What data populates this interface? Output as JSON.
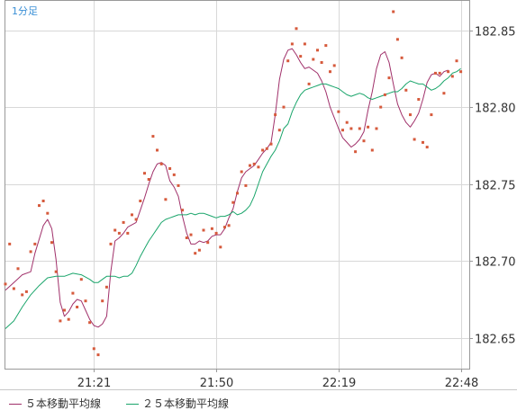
{
  "timeframe_label": "1分足",
  "legend": {
    "ma5_label": "５本移動平均線",
    "ma25_label": "２５本移動平均線"
  },
  "colors": {
    "price_point": "#d65a3c",
    "ma5": "#a0306a",
    "ma25": "#1aa56b",
    "grid": "#d8d8d8",
    "frame": "#999999",
    "timeframe_label": "#3a8fd6"
  },
  "chart_data": {
    "type": "scatter",
    "x_tick_labels": [
      "21:21",
      "21:50",
      "22:19",
      "22:48"
    ],
    "x_ticks": [
      21,
      50,
      79,
      108
    ],
    "xlim": [
      0,
      110
    ],
    "y_tick_labels": [
      "182.85",
      "182.80",
      "182.75",
      "182.70",
      "182.65"
    ],
    "y_ticks": [
      182.85,
      182.8,
      182.75,
      182.7,
      182.65
    ],
    "ylim": [
      182.63,
      182.869
    ],
    "grid": true,
    "series": [
      {
        "name": "",
        "kind": "points",
        "points": [
          [
            0,
            182.685
          ],
          [
            1,
            182.711
          ],
          [
            2,
            182.682
          ],
          [
            3,
            182.695
          ],
          [
            4,
            182.678
          ],
          [
            5,
            182.68
          ],
          [
            6,
            182.706
          ],
          [
            7,
            182.711
          ],
          [
            8,
            182.736
          ],
          [
            9,
            182.739
          ],
          [
            10,
            182.731
          ],
          [
            11,
            182.712
          ],
          [
            12,
            182.693
          ],
          [
            13,
            182.661
          ],
          [
            14,
            182.668
          ],
          [
            15,
            182.662
          ],
          [
            16,
            182.679
          ],
          [
            17,
            182.67
          ],
          [
            18,
            182.688
          ],
          [
            19,
            182.674
          ],
          [
            20,
            182.66
          ],
          [
            21,
            182.643
          ],
          [
            22,
            182.639
          ],
          [
            23,
            182.674
          ],
          [
            24,
            182.683
          ],
          [
            25,
            182.711
          ],
          [
            26,
            182.72
          ],
          [
            27,
            182.718
          ],
          [
            28,
            182.725
          ],
          [
            29,
            182.718
          ],
          [
            30,
            182.73
          ],
          [
            31,
            182.727
          ],
          [
            32,
            182.739
          ],
          [
            33,
            182.757
          ],
          [
            34,
            182.753
          ],
          [
            35,
            182.781
          ],
          [
            36,
            182.772
          ],
          [
            37,
            182.763
          ],
          [
            38,
            182.74
          ],
          [
            39,
            182.76
          ],
          [
            40,
            182.756
          ],
          [
            41,
            182.749
          ],
          [
            42,
            182.733
          ],
          [
            43,
            182.715
          ],
          [
            44,
            182.717
          ],
          [
            45,
            182.705
          ],
          [
            46,
            182.707
          ],
          [
            47,
            182.72
          ],
          [
            48,
            182.712
          ],
          [
            49,
            182.721
          ],
          [
            50,
            182.718
          ],
          [
            51,
            182.709
          ],
          [
            52,
            182.722
          ],
          [
            53,
            182.723
          ],
          [
            54,
            182.738
          ],
          [
            55,
            182.744
          ],
          [
            56,
            182.758
          ],
          [
            57,
            182.749
          ],
          [
            58,
            182.762
          ],
          [
            59,
            182.763
          ],
          [
            60,
            182.761
          ],
          [
            61,
            182.772
          ],
          [
            62,
            182.773
          ],
          [
            63,
            182.776
          ],
          [
            64,
            182.795
          ],
          [
            65,
            182.785
          ],
          [
            66,
            182.8
          ],
          [
            67,
            182.83
          ],
          [
            68,
            182.841
          ],
          [
            69,
            182.851
          ],
          [
            70,
            182.833
          ],
          [
            71,
            182.841
          ],
          [
            72,
            182.815
          ],
          [
            73,
            182.831
          ],
          [
            74,
            182.837
          ],
          [
            75,
            182.829
          ],
          [
            76,
            182.84
          ],
          [
            77,
            182.823
          ],
          [
            78,
            182.827
          ],
          [
            79,
            182.797
          ],
          [
            80,
            182.785
          ],
          [
            81,
            182.79
          ],
          [
            82,
            182.786
          ],
          [
            83,
            182.771
          ],
          [
            84,
            182.786
          ],
          [
            85,
            182.778
          ],
          [
            86,
            182.787
          ],
          [
            87,
            182.772
          ],
          [
            88,
            182.786
          ],
          [
            89,
            182.8
          ],
          [
            90,
            182.808
          ],
          [
            91,
            182.819
          ],
          [
            92,
            182.862
          ],
          [
            93,
            182.844
          ],
          [
            94,
            182.832
          ],
          [
            95,
            182.811
          ],
          [
            96,
            182.795
          ],
          [
            97,
            182.779
          ],
          [
            98,
            182.805
          ],
          [
            99,
            182.777
          ],
          [
            100,
            182.774
          ],
          [
            101,
            182.795
          ],
          [
            102,
            182.822
          ],
          [
            103,
            182.822
          ],
          [
            104,
            182.809
          ],
          [
            105,
            182.823
          ],
          [
            106,
            182.82
          ],
          [
            107,
            182.83
          ],
          [
            108,
            182.823
          ]
        ]
      },
      {
        "name": "５本移動平均線",
        "kind": "line",
        "points": [
          [
            0,
            182.681
          ],
          [
            2,
            182.686
          ],
          [
            4,
            182.691
          ],
          [
            6,
            182.693
          ],
          [
            7,
            182.705
          ],
          [
            9,
            182.723
          ],
          [
            10,
            182.727
          ],
          [
            11,
            182.721
          ],
          [
            12,
            182.701
          ],
          [
            13,
            182.673
          ],
          [
            14,
            182.664
          ],
          [
            15,
            182.667
          ],
          [
            16,
            182.672
          ],
          [
            17,
            182.675
          ],
          [
            18,
            182.674
          ],
          [
            19,
            182.668
          ],
          [
            20,
            182.662
          ],
          [
            21,
            182.658
          ],
          [
            22,
            182.657
          ],
          [
            23,
            182.659
          ],
          [
            24,
            182.664
          ],
          [
            25,
            182.693
          ],
          [
            26,
            182.713
          ],
          [
            27,
            182.715
          ],
          [
            28,
            182.718
          ],
          [
            29,
            182.722
          ],
          [
            31,
            182.725
          ],
          [
            32,
            182.733
          ],
          [
            33,
            182.741
          ],
          [
            34,
            182.75
          ],
          [
            35,
            182.758
          ],
          [
            36,
            182.763
          ],
          [
            37,
            182.764
          ],
          [
            38,
            182.762
          ],
          [
            39,
            182.752
          ],
          [
            40,
            182.748
          ],
          [
            41,
            182.742
          ],
          [
            42,
            182.729
          ],
          [
            43,
            182.718
          ],
          [
            44,
            182.711
          ],
          [
            45,
            182.711
          ],
          [
            46,
            182.713
          ],
          [
            47,
            182.712
          ],
          [
            48,
            182.713
          ],
          [
            49,
            182.716
          ],
          [
            50,
            182.717
          ],
          [
            51,
            182.717
          ],
          [
            52,
            182.721
          ],
          [
            53,
            182.728
          ],
          [
            54,
            182.734
          ],
          [
            55,
            182.745
          ],
          [
            56,
            182.754
          ],
          [
            57,
            182.758
          ],
          [
            58,
            182.76
          ],
          [
            59,
            182.762
          ],
          [
            60,
            182.766
          ],
          [
            61,
            182.77
          ],
          [
            62,
            182.773
          ],
          [
            63,
            182.777
          ],
          [
            64,
            182.795
          ],
          [
            65,
            182.818
          ],
          [
            66,
            182.831
          ],
          [
            67,
            182.837
          ],
          [
            68,
            182.838
          ],
          [
            69,
            182.834
          ],
          [
            70,
            182.829
          ],
          [
            71,
            182.825
          ],
          [
            72,
            182.826
          ],
          [
            73,
            182.824
          ],
          [
            74,
            182.822
          ],
          [
            75,
            182.817
          ],
          [
            76,
            182.81
          ],
          [
            77,
            182.8
          ],
          [
            78,
            182.793
          ],
          [
            79,
            182.786
          ],
          [
            80,
            182.78
          ],
          [
            81,
            182.777
          ],
          [
            82,
            182.774
          ],
          [
            83,
            182.776
          ],
          [
            84,
            182.779
          ],
          [
            85,
            182.784
          ],
          [
            86,
            182.798
          ],
          [
            87,
            182.81
          ],
          [
            88,
            182.825
          ],
          [
            89,
            182.834
          ],
          [
            90,
            182.836
          ],
          [
            91,
            182.829
          ],
          [
            92,
            182.815
          ],
          [
            93,
            182.802
          ],
          [
            94,
            182.795
          ],
          [
            95,
            182.79
          ],
          [
            96,
            182.787
          ],
          [
            97,
            182.791
          ],
          [
            98,
            182.796
          ],
          [
            99,
            182.805
          ],
          [
            100,
            182.816
          ],
          [
            101,
            182.821
          ],
          [
            102,
            182.822
          ],
          [
            103,
            182.82
          ],
          [
            104,
            182.823
          ],
          [
            105,
            182.824
          ]
        ]
      },
      {
        "name": "２５本移動平均線",
        "kind": "line",
        "points": [
          [
            0,
            182.656
          ],
          [
            2,
            182.661
          ],
          [
            4,
            182.67
          ],
          [
            6,
            182.678
          ],
          [
            8,
            182.684
          ],
          [
            10,
            182.689
          ],
          [
            12,
            182.69
          ],
          [
            14,
            182.69
          ],
          [
            16,
            182.692
          ],
          [
            18,
            182.691
          ],
          [
            20,
            182.688
          ],
          [
            21,
            182.686
          ],
          [
            22,
            182.686
          ],
          [
            23,
            182.688
          ],
          [
            24,
            182.69
          ],
          [
            25,
            182.69
          ],
          [
            26,
            182.69
          ],
          [
            27,
            182.689
          ],
          [
            28,
            182.69
          ],
          [
            29,
            182.69
          ],
          [
            30,
            182.692
          ],
          [
            31,
            182.697
          ],
          [
            32,
            182.703
          ],
          [
            33,
            182.708
          ],
          [
            34,
            182.713
          ],
          [
            35,
            182.717
          ],
          [
            36,
            182.721
          ],
          [
            37,
            182.725
          ],
          [
            38,
            182.727
          ],
          [
            39,
            182.728
          ],
          [
            40,
            182.729
          ],
          [
            41,
            182.73
          ],
          [
            42,
            182.73
          ],
          [
            43,
            182.73
          ],
          [
            44,
            182.731
          ],
          [
            45,
            182.73
          ],
          [
            46,
            182.731
          ],
          [
            47,
            182.731
          ],
          [
            48,
            182.73
          ],
          [
            49,
            182.729
          ],
          [
            50,
            182.728
          ],
          [
            51,
            182.729
          ],
          [
            52,
            182.729
          ],
          [
            53,
            182.73
          ],
          [
            54,
            182.732
          ],
          [
            55,
            182.73
          ],
          [
            56,
            182.731
          ],
          [
            57,
            182.733
          ],
          [
            58,
            182.736
          ],
          [
            59,
            182.742
          ],
          [
            60,
            182.75
          ],
          [
            61,
            182.758
          ],
          [
            62,
            182.763
          ],
          [
            63,
            182.768
          ],
          [
            64,
            182.772
          ],
          [
            65,
            182.778
          ],
          [
            66,
            182.786
          ],
          [
            67,
            182.789
          ],
          [
            68,
            182.797
          ],
          [
            69,
            182.803
          ],
          [
            70,
            182.808
          ],
          [
            71,
            182.811
          ],
          [
            72,
            182.812
          ],
          [
            73,
            182.813
          ],
          [
            74,
            182.814
          ],
          [
            75,
            182.815
          ],
          [
            76,
            182.815
          ],
          [
            77,
            182.814
          ],
          [
            78,
            182.813
          ],
          [
            79,
            182.812
          ],
          [
            80,
            182.81
          ],
          [
            81,
            182.808
          ],
          [
            82,
            182.807
          ],
          [
            83,
            182.808
          ],
          [
            84,
            182.809
          ],
          [
            85,
            182.808
          ],
          [
            86,
            182.806
          ],
          [
            87,
            182.805
          ],
          [
            88,
            182.806
          ],
          [
            89,
            182.807
          ],
          [
            90,
            182.808
          ],
          [
            91,
            182.809
          ],
          [
            92,
            182.81
          ],
          [
            93,
            182.81
          ],
          [
            94,
            182.812
          ],
          [
            95,
            182.815
          ],
          [
            96,
            182.817
          ],
          [
            97,
            182.816
          ],
          [
            98,
            182.815
          ],
          [
            99,
            182.815
          ],
          [
            100,
            182.813
          ],
          [
            101,
            182.811
          ],
          [
            102,
            182.812
          ],
          [
            103,
            182.814
          ],
          [
            104,
            182.817
          ],
          [
            105,
            182.819
          ],
          [
            106,
            182.822
          ],
          [
            107,
            182.823
          ],
          [
            108,
            182.825
          ]
        ]
      }
    ]
  }
}
